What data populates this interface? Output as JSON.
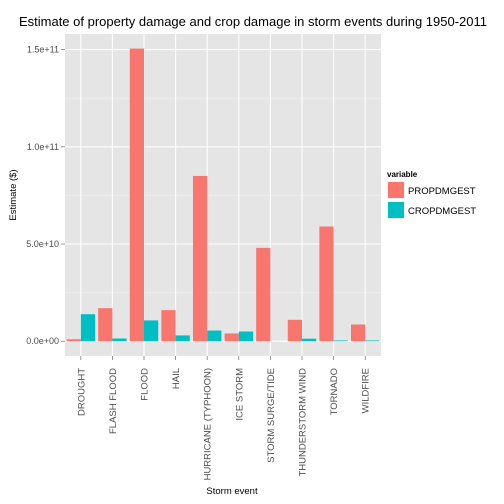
{
  "chart_data": {
    "type": "bar",
    "title": "Estimate of property damage and crop damage in storm events during 1950-2011",
    "xlabel": "Storm event",
    "ylabel": "Estimate ($)",
    "categories": [
      "DROUGHT",
      "FLASH FLOOD",
      "FLOOD",
      "HAIL",
      "HURRICANE (TYPHOON)",
      "ICE STORM",
      "STORM SURGE/TIDE",
      "THUNDERSTORM WIND",
      "TORNADO",
      "WILDFIRE"
    ],
    "series": [
      {
        "name": "PROPDMGEST",
        "color": "#f8766d",
        "values": [
          1000000000.0,
          17000000000.0,
          150500000000.0,
          16000000000.0,
          85000000000.0,
          4000000000.0,
          48000000000.0,
          11000000000.0,
          59000000000.0,
          8600000000.0
        ]
      },
      {
        "name": "CROPDMGEST",
        "color": "#00bfc4",
        "values": [
          13900000000.0,
          1400000000.0,
          10700000000.0,
          3000000000.0,
          5500000000.0,
          5000000000.0,
          0,
          1300000000.0,
          400000000.0,
          400000000.0
        ]
      }
    ],
    "ylim": [
      -7600000000.0,
      158000000000.0
    ],
    "yticks": [
      0,
      50000000000.0,
      100000000000.0,
      150000000000.0
    ],
    "ytick_labels": [
      "0.0e+00",
      "5.0e+10",
      "1.0e+11",
      "1.5e+11"
    ],
    "grid": true,
    "legend": {
      "title": "variable",
      "position": "right"
    }
  }
}
